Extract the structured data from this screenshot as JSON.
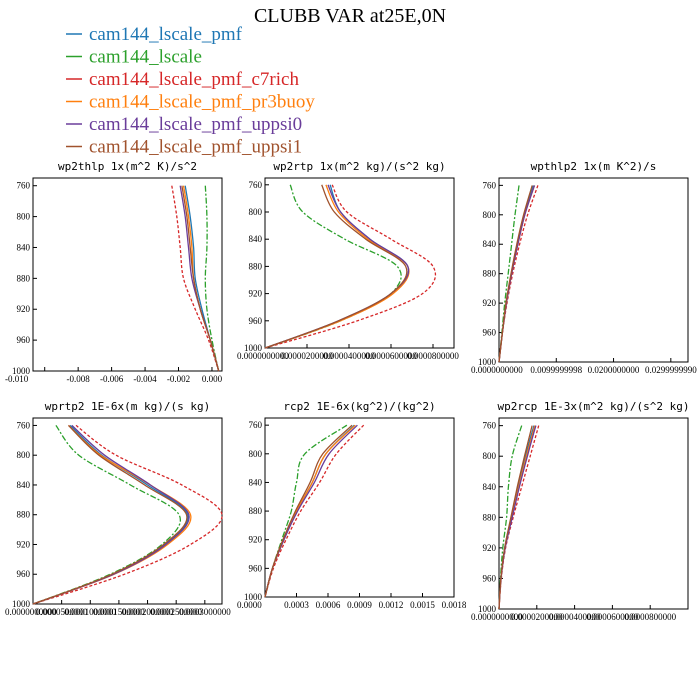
{
  "figure": {
    "title": "CLUBB VAR at25E,0N"
  },
  "legend": [
    {
      "label": "cam144_lscale_pmf",
      "color": "#1f77b4"
    },
    {
      "label": "cam144_lscale",
      "color": "#2ca02c"
    },
    {
      "label": "cam144_lscale_pmf_c7rich",
      "color": "#d62728"
    },
    {
      "label": "cam144_lscale_pmf_pr3buoy",
      "color": "#ff7f0e"
    },
    {
      "label": "cam144_lscale_pmf_uppsi0",
      "color": "#6a3d9a"
    },
    {
      "label": "cam144_lscale_pmf_uppsi1",
      "color": "#a0522d"
    }
  ],
  "chart_data": [
    {
      "type": "line",
      "title": "wp2thlp 1x(m^2 K)/s^2",
      "ylim": [
        1000,
        750
      ],
      "yticks": [
        "760",
        "800",
        "840",
        "880",
        "920",
        "960",
        "1000"
      ],
      "xlim": [
        -0.0107,
        0.0006
      ],
      "xticks": [
        "-0.010",
        "-0.008",
        "-0.006",
        "-0.004",
        "-0.002",
        "0.000"
      ],
      "y": [
        760,
        800,
        840,
        880,
        920,
        960,
        1000
      ],
      "series": [
        {
          "name": "cam144_lscale_pmf",
          "values": [
            -0.0016,
            -0.0013,
            -0.0011,
            -0.001,
            -0.0006,
            -0.0001,
            0.0004
          ]
        },
        {
          "name": "cam144_lscale",
          "values": [
            -0.0004,
            -0.0003,
            -0.0003,
            -0.0004,
            -0.0003,
            0.0,
            0.0004
          ]
        },
        {
          "name": "cam144_lscale_pmf_c7rich",
          "values": [
            -0.0024,
            -0.0021,
            -0.0019,
            -0.0017,
            -0.001,
            -0.0002,
            0.0004
          ]
        },
        {
          "name": "cam144_lscale_pmf_pr3buoy",
          "values": [
            -0.0017,
            -0.0014,
            -0.0012,
            -0.0011,
            -0.0007,
            -0.0001,
            0.0004
          ]
        },
        {
          "name": "cam144_lscale_pmf_uppsi0",
          "values": [
            -0.0019,
            -0.0016,
            -0.0014,
            -0.0012,
            -0.0007,
            -0.0001,
            0.0004
          ]
        },
        {
          "name": "cam144_lscale_pmf_uppsi1",
          "values": [
            -0.0018,
            -0.0015,
            -0.0013,
            -0.0011,
            -0.0007,
            -0.0001,
            0.0004
          ]
        }
      ]
    },
    {
      "type": "line",
      "title": "wp2rtp 1x(m^2 kg)/(s^2 kg)",
      "ylim": [
        1000,
        750
      ],
      "yticks": [
        "760",
        "800",
        "840",
        "880",
        "920",
        "960",
        "1000"
      ],
      "xlim": [
        0,
        9e-05
      ],
      "xticks": [
        "0.0000000000",
        "0.0000200000",
        "0.0000400000",
        "0.0000600000",
        "0.0000800000"
      ],
      "y": [
        760,
        800,
        840,
        880,
        920,
        960,
        1000
      ],
      "series": [
        {
          "name": "cam144_lscale_pmf",
          "values": [
            3.1e-05,
            3.6e-05,
            5e-05,
            6.8e-05,
            6e-05,
            3.5e-05,
            0.0
          ]
        },
        {
          "name": "cam144_lscale",
          "values": [
            1.2e-05,
            1.8e-05,
            3.8e-05,
            6.3e-05,
            6e-05,
            3.6e-05,
            0.0
          ]
        },
        {
          "name": "cam144_lscale_pmf_c7rich",
          "values": [
            3.2e-05,
            3.9e-05,
            6e-05,
            8e-05,
            7.5e-05,
            4.4e-05,
            0.0
          ]
        },
        {
          "name": "cam144_lscale_pmf_pr3buoy",
          "values": [
            2.9e-05,
            3.5e-05,
            4.9e-05,
            6.8e-05,
            6.1e-05,
            3.6e-05,
            0.0
          ]
        },
        {
          "name": "cam144_lscale_pmf_uppsi0",
          "values": [
            3e-05,
            3.6e-05,
            5e-05,
            6.8e-05,
            6e-05,
            3.5e-05,
            0.0
          ]
        },
        {
          "name": "cam144_lscale_pmf_uppsi1",
          "values": [
            2.7e-05,
            3.3e-05,
            4.8e-05,
            6.7e-05,
            6e-05,
            3.5e-05,
            0.0
          ]
        }
      ]
    },
    {
      "type": "line",
      "title": "wpthlp2 1x(m K^2)/s",
      "ylim": [
        1000,
        750
      ],
      "yticks": [
        "760",
        "800",
        "840",
        "880",
        "920",
        "960",
        "1000"
      ],
      "xlim": [
        0,
        0.033
      ],
      "xticks": [
        "0.0000000000",
        "0.0099999998",
        "0.0200000000",
        "0.0299999990"
      ],
      "y": [
        760,
        800,
        840,
        880,
        920,
        960,
        1000
      ],
      "series": [
        {
          "name": "cam144_lscale_pmf",
          "values": [
            0.006,
            0.0044,
            0.0032,
            0.0022,
            0.0013,
            0.0006,
            0.0
          ]
        },
        {
          "name": "cam144_lscale",
          "values": [
            0.0035,
            0.0028,
            0.0022,
            0.0016,
            0.001,
            0.0005,
            0.0
          ]
        },
        {
          "name": "cam144_lscale_pmf_c7rich",
          "values": [
            0.0068,
            0.005,
            0.0036,
            0.0024,
            0.0014,
            0.0006,
            0.0
          ]
        },
        {
          "name": "cam144_lscale_pmf_pr3buoy",
          "values": [
            0.0062,
            0.0045,
            0.0033,
            0.0022,
            0.0013,
            0.0006,
            0.0
          ]
        },
        {
          "name": "cam144_lscale_pmf_uppsi0",
          "values": [
            0.0062,
            0.0045,
            0.0033,
            0.0022,
            0.0013,
            0.0006,
            0.0
          ]
        },
        {
          "name": "cam144_lscale_pmf_uppsi1",
          "values": [
            0.0058,
            0.0043,
            0.0031,
            0.0021,
            0.0012,
            0.0006,
            0.0
          ]
        }
      ]
    },
    {
      "type": "line",
      "title": "wprtp2 1E-6x(m kg)/(s kg)",
      "ylim": [
        1000,
        750
      ],
      "yticks": [
        "760",
        "800",
        "840",
        "880",
        "920",
        "960",
        "1000"
      ],
      "xlim": [
        0,
        0.00033
      ],
      "xticks": [
        "0.0000000000",
        "0.0000500000",
        "0.0001000000",
        "0.0001500000",
        "0.0002000000",
        "0.0002500000",
        "0.0003000000"
      ],
      "y": [
        760,
        800,
        840,
        880,
        920,
        960,
        1000
      ],
      "series": [
        {
          "name": "cam144_lscale_pmf",
          "values": [
            6.5e-05,
            0.00012,
            0.0002,
            0.00027,
            0.00023,
            0.00014,
            0.0
          ]
        },
        {
          "name": "cam144_lscale",
          "values": [
            4e-05,
            8e-05,
            0.00017,
            0.000255,
            0.000225,
            0.000135,
            0.0
          ]
        },
        {
          "name": "cam144_lscale_pmf_c7rich",
          "values": [
            7.5e-05,
            0.000145,
            0.00026,
            0.00033,
            0.000275,
            0.00016,
            0.0
          ]
        },
        {
          "name": "cam144_lscale_pmf_pr3buoy",
          "values": [
            6.2e-05,
            0.000118,
            0.000205,
            0.000275,
            0.000235,
            0.000142,
            0.0
          ]
        },
        {
          "name": "cam144_lscale_pmf_uppsi0",
          "values": [
            6.8e-05,
            0.000125,
            0.000205,
            0.000272,
            0.000232,
            0.000141,
            0.0
          ]
        },
        {
          "name": "cam144_lscale_pmf_uppsi1",
          "values": [
            6.2e-05,
            0.000115,
            0.000195,
            0.000268,
            0.000228,
            0.000138,
            0.0
          ]
        }
      ]
    },
    {
      "type": "line",
      "title": "rcp2 1E-6x(kg^2)/(kg^2)",
      "ylim": [
        1000,
        750
      ],
      "yticks": [
        "760",
        "800",
        "840",
        "880",
        "920",
        "960",
        "1000"
      ],
      "xlim": [
        0,
        0.0018
      ],
      "xticks": [
        "0.0000",
        "0.0003",
        "0.0006",
        "0.0009",
        "0.0012",
        "0.0015",
        "0.0018"
      ],
      "y": [
        760,
        800,
        840,
        880,
        920,
        960,
        1000
      ],
      "series": [
        {
          "name": "cam144_lscale_pmf",
          "values": [
            0.00085,
            0.00058,
            0.00045,
            0.0003,
            0.00018,
            7e-05,
            0.0
          ]
        },
        {
          "name": "cam144_lscale",
          "values": [
            0.00078,
            0.00038,
            0.0003,
            0.00025,
            0.00016,
            7e-05,
            0.0
          ]
        },
        {
          "name": "cam144_lscale_pmf_c7rich",
          "values": [
            0.00094,
            0.00068,
            0.00052,
            0.00034,
            0.0002,
            8e-05,
            0.0
          ]
        },
        {
          "name": "cam144_lscale_pmf_pr3buoy",
          "values": [
            0.00086,
            0.00058,
            0.00045,
            0.0003,
            0.00018,
            7e-05,
            0.0
          ]
        },
        {
          "name": "cam144_lscale_pmf_uppsi0",
          "values": [
            0.00088,
            0.00061,
            0.00047,
            0.00031,
            0.00018,
            7e-05,
            0.0
          ]
        },
        {
          "name": "cam144_lscale_pmf_uppsi1",
          "values": [
            0.00083,
            0.00055,
            0.00043,
            0.00029,
            0.00017,
            7e-05,
            0.0
          ]
        }
      ]
    },
    {
      "type": "line",
      "title": "wp2rcp 1E-3x(m^2 kg)/(s^2 kg)",
      "ylim": [
        1000,
        750
      ],
      "yticks": [
        "760",
        "800",
        "840",
        "880",
        "920",
        "960",
        "1000"
      ],
      "xlim": [
        0,
        0.0001
      ],
      "xticks": [
        "0.0000000000",
        "0.0000200000",
        "0.0000400000",
        "0.0000600000",
        "0.0000800000"
      ],
      "y": [
        760,
        800,
        840,
        880,
        920,
        960,
        1000
      ],
      "series": [
        {
          "name": "cam144_lscale_pmf",
          "values": [
            1.85e-05,
            1.4e-05,
            1e-05,
            6.5e-06,
            3e-06,
            1e-06,
            0.0
          ]
        },
        {
          "name": "cam144_lscale",
          "values": [
            1.2e-05,
            7e-06,
            5e-06,
            4e-06,
            2e-06,
            8e-07,
            0.0
          ]
        },
        {
          "name": "cam144_lscale_pmf_c7rich",
          "values": [
            2.1e-05,
            1.65e-05,
            1.2e-05,
            7.5e-06,
            3.5e-06,
            1.2e-06,
            0.0
          ]
        },
        {
          "name": "cam144_lscale_pmf_pr3buoy",
          "values": [
            1.9e-05,
            1.45e-05,
            1.05e-05,
            6.8e-06,
            3.2e-06,
            1.1e-06,
            0.0
          ]
        },
        {
          "name": "cam144_lscale_pmf_uppsi0",
          "values": [
            1.95e-05,
            1.5e-05,
            1.08e-05,
            7e-06,
            3.3e-06,
            1.1e-06,
            0.0
          ]
        },
        {
          "name": "cam144_lscale_pmf_uppsi1",
          "values": [
            1.75e-05,
            1.35e-05,
            9.7e-06,
            6.3e-06,
            3e-06,
            1e-06,
            0.0
          ]
        }
      ]
    }
  ]
}
